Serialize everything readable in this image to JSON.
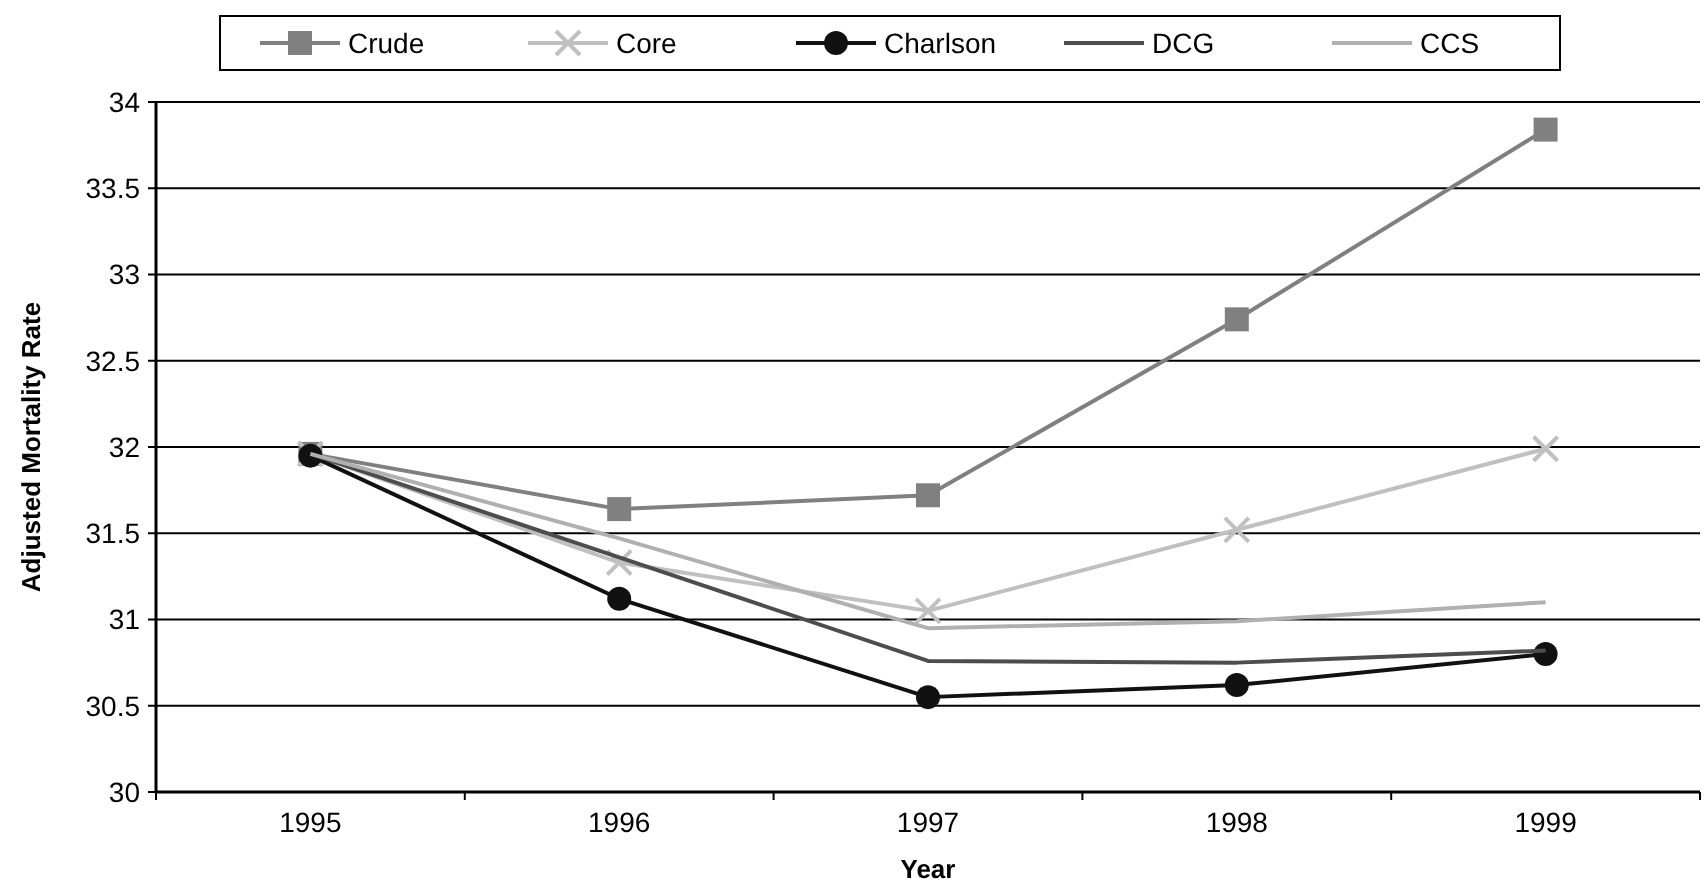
{
  "chart_data": {
    "type": "line",
    "xlabel": "Year",
    "ylabel": "Adjusted Mortality Rate",
    "categories": [
      "1995",
      "1996",
      "1997",
      "1998",
      "1999"
    ],
    "ylim": [
      30,
      34
    ],
    "yticks": [
      30,
      30.5,
      31,
      31.5,
      32,
      32.5,
      33,
      33.5,
      34
    ],
    "grid": "y",
    "legend": "top",
    "series": [
      {
        "name": "Crude",
        "color": "#808080",
        "marker": "square",
        "values": [
          31.96,
          31.64,
          31.72,
          32.74,
          33.84
        ]
      },
      {
        "name": "Core",
        "color": "#c0c0c0",
        "marker": "cross",
        "values": [
          31.96,
          31.33,
          31.05,
          31.52,
          31.99
        ]
      },
      {
        "name": "Charlson",
        "color": "#111111",
        "marker": "circle",
        "values": [
          31.95,
          31.12,
          30.55,
          30.62,
          30.8
        ]
      },
      {
        "name": "DCG",
        "color": "#4d4d4d",
        "marker": "none",
        "values": [
          31.96,
          31.36,
          30.76,
          30.75,
          30.82
        ]
      },
      {
        "name": "CCS",
        "color": "#b0b0b0",
        "marker": "none",
        "values": [
          31.96,
          31.47,
          30.95,
          30.99,
          31.1
        ]
      }
    ]
  }
}
